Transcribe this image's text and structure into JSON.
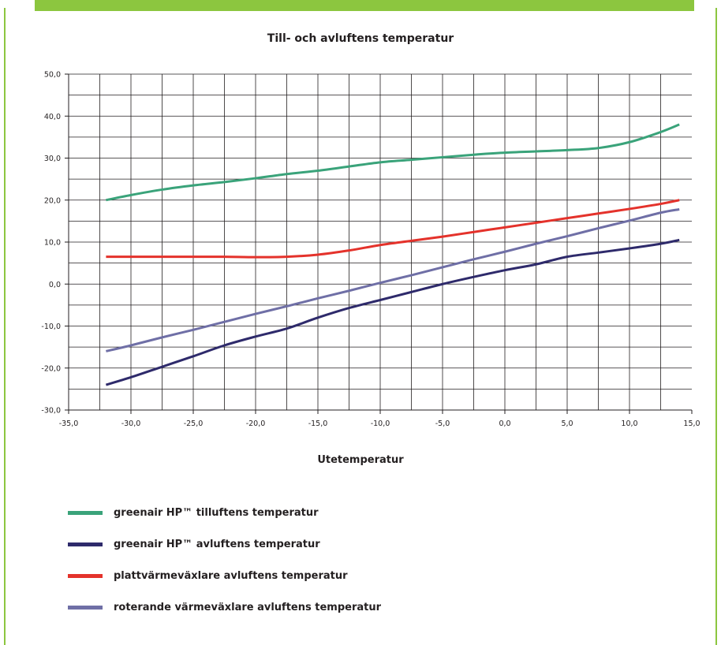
{
  "chart_data": {
    "type": "line",
    "title": "Till- och avluftens temperatur",
    "xlabel": "Utetemperatur",
    "ylabel": "",
    "xlim": [
      -35,
      15
    ],
    "ylim": [
      -30,
      50
    ],
    "x_ticks": [
      -35,
      -30,
      -25,
      -20,
      -15,
      -10,
      -5,
      0,
      5,
      10,
      15
    ],
    "x_tick_labels": [
      "-35,0",
      "-30,0",
      "-25,0",
      "-20,0",
      "-15,0",
      "-10,0",
      "-5,0",
      "0,0",
      "5,0",
      "10,0",
      "15,0"
    ],
    "y_ticks": [
      -30,
      -20,
      -10,
      0,
      10,
      20,
      30,
      40,
      50
    ],
    "y_tick_labels": [
      "-30,0",
      "-20,0",
      "-10,0",
      "0,0",
      "10,0",
      "20,0",
      "30,0",
      "40,0",
      "50,0"
    ],
    "grid": true,
    "legend_position": "bottom",
    "series": [
      {
        "name": "greenair HP™ tilluftens temperatur",
        "color": "#3aa37a",
        "x": [
          -32,
          -30,
          -27.5,
          -25,
          -22.5,
          -20,
          -17.5,
          -15,
          -12.5,
          -10,
          -7.5,
          -5,
          -2.5,
          0,
          2.5,
          5,
          7.5,
          10,
          12.5,
          14
        ],
        "y": [
          20,
          21.2,
          22.5,
          23.5,
          24.3,
          25.2,
          26.2,
          27,
          28,
          29,
          29.6,
          30.2,
          30.8,
          31.3,
          31.6,
          31.9,
          32.4,
          33.8,
          36.2,
          38
        ]
      },
      {
        "name": "greenair HP™ avluftens temperatur",
        "color": "#2e2a6b",
        "x": [
          -32,
          -30,
          -27.5,
          -25,
          -22.5,
          -20,
          -17.5,
          -15,
          -12.5,
          -10,
          -7.5,
          -5,
          -2.5,
          0,
          2.5,
          5,
          7.5,
          10,
          12.5,
          14
        ],
        "y": [
          -24,
          -22.2,
          -19.7,
          -17.2,
          -14.6,
          -12.5,
          -10.6,
          -8,
          -5.7,
          -3.8,
          -1.9,
          0,
          1.7,
          3.3,
          4.7,
          6.5,
          7.5,
          8.5,
          9.6,
          10.5
        ]
      },
      {
        "name": "plattvärmeväxlare avluftens temperatur",
        "color": "#e4322b",
        "x": [
          -32,
          -30,
          -27.5,
          -25,
          -22.5,
          -20,
          -17.5,
          -15,
          -12.5,
          -10,
          -7.5,
          -5,
          -2.5,
          0,
          2.5,
          5,
          7.5,
          10,
          12.5,
          14
        ],
        "y": [
          6.5,
          6.5,
          6.5,
          6.5,
          6.5,
          6.4,
          6.5,
          7,
          8,
          9.3,
          10.3,
          11.3,
          12.4,
          13.5,
          14.6,
          15.7,
          16.8,
          17.9,
          19.1,
          20
        ]
      },
      {
        "name": "roterande värmeväxlare avluftens temperatur",
        "color": "#6f6fa6",
        "x": [
          -32,
          -30,
          -27.5,
          -25,
          -22.5,
          -20,
          -17.5,
          -15,
          -12.5,
          -10,
          -7.5,
          -5,
          -2.5,
          0,
          2.5,
          5,
          7.5,
          10,
          12.5,
          14
        ],
        "y": [
          -16,
          -14.6,
          -12.7,
          -10.9,
          -9,
          -7.1,
          -5.3,
          -3.4,
          -1.6,
          0.3,
          2.1,
          4,
          5.9,
          7.7,
          9.6,
          11.4,
          13.3,
          15.1,
          17,
          17.8
        ]
      }
    ]
  }
}
